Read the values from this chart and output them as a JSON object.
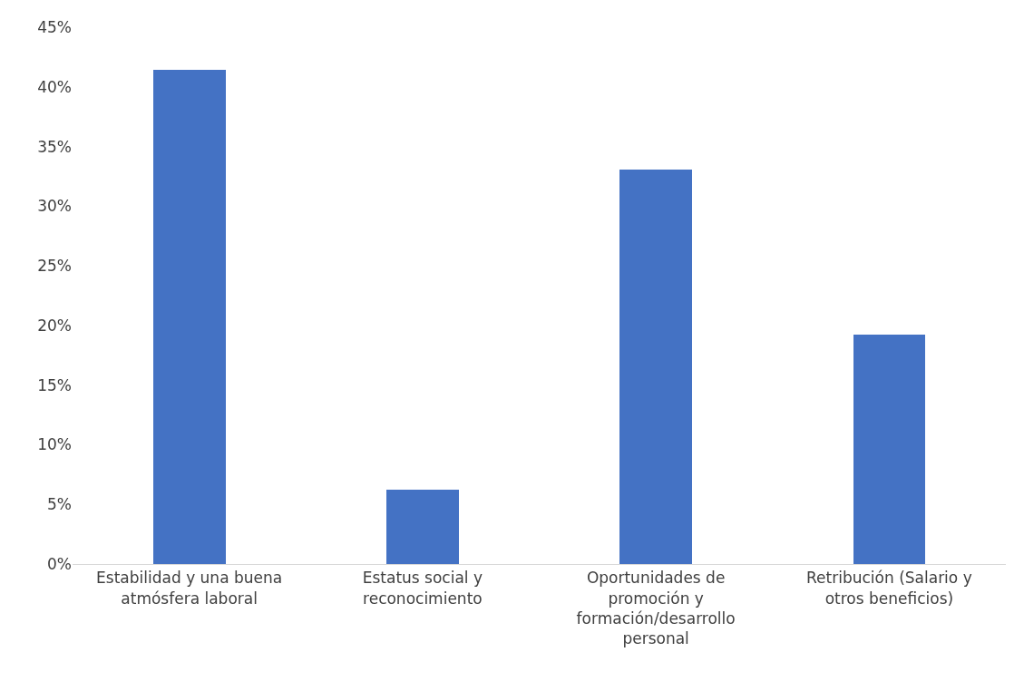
{
  "chart_data": {
    "type": "bar",
    "categories": [
      "Estabilidad y una buena atmósfera laboral",
      "Estatus social y reconocimiento",
      "Oportunidades de promoción y formación/desarrollo personal",
      "Retribución (Salario y otros beneficios)"
    ],
    "values": [
      41.4,
      6.2,
      33.1,
      19.2
    ],
    "color": "#4472c4",
    "ylim": [
      0,
      45
    ],
    "yticks": [
      {
        "value": 0,
        "label": "0%"
      },
      {
        "value": 5,
        "label": "5%"
      },
      {
        "value": 10,
        "label": "10%"
      },
      {
        "value": 15,
        "label": "15%"
      },
      {
        "value": 20,
        "label": "20%"
      },
      {
        "value": 25,
        "label": "25%"
      },
      {
        "value": 30,
        "label": "30%"
      },
      {
        "value": 35,
        "label": "35%"
      },
      {
        "value": 40,
        "label": "40%"
      },
      {
        "value": 45,
        "label": "45%"
      }
    ],
    "grid": false
  }
}
